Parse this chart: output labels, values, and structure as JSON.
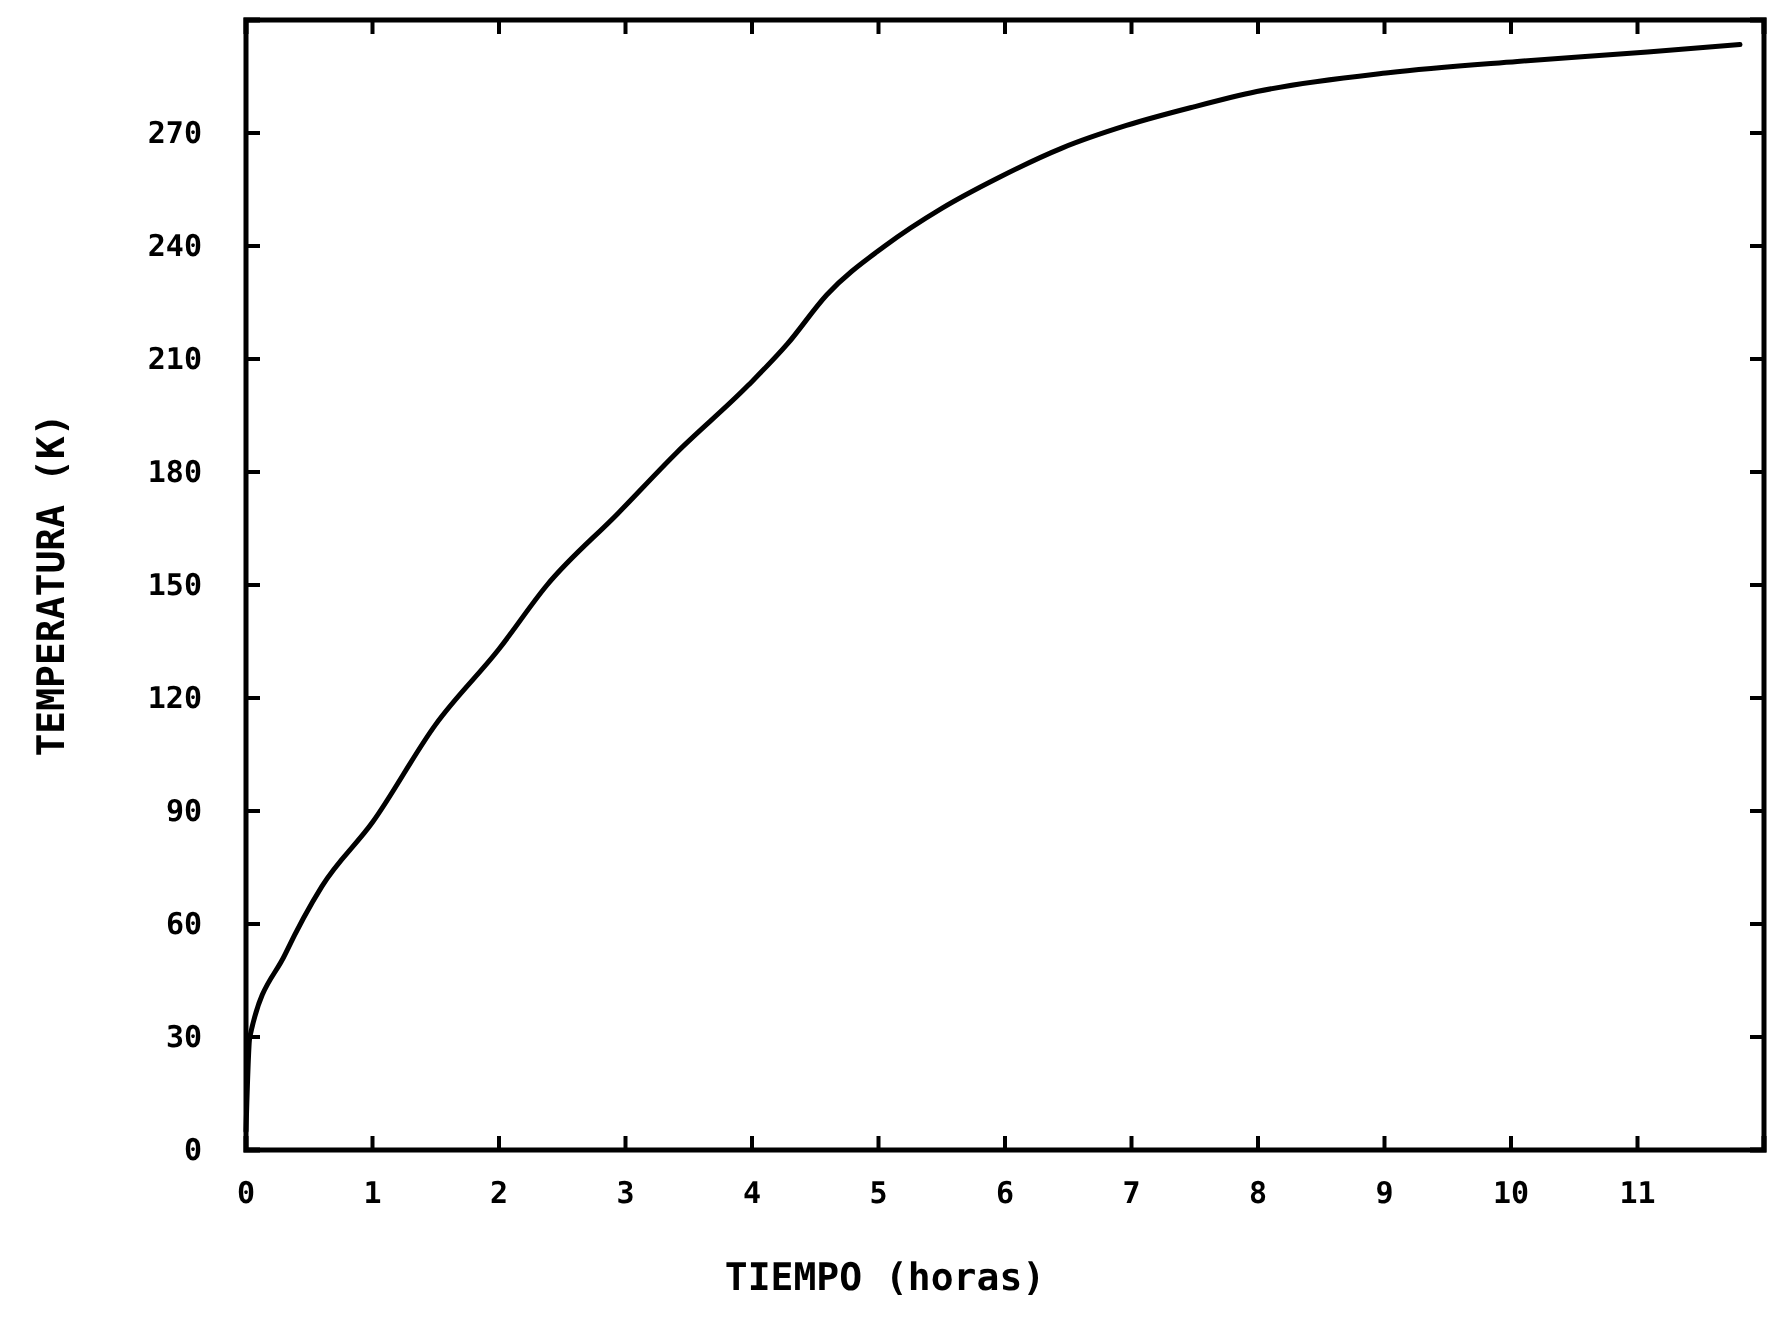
{
  "chart_data": {
    "type": "line",
    "xlabel": "TIEMPO (horas)",
    "ylabel": "TEMPERATURA (K)",
    "xlim": [
      0,
      12
    ],
    "ylim": [
      0,
      300
    ],
    "xticks": [
      0,
      1,
      2,
      3,
      4,
      5,
      6,
      7,
      8,
      9,
      10,
      11
    ],
    "yticks": [
      0,
      30,
      60,
      90,
      120,
      150,
      180,
      210,
      240,
      270
    ],
    "marker": "none",
    "line_style": "solid",
    "series": [
      {
        "color": "#000000",
        "x": [
          0,
          0.03,
          0.31,
          0.6,
          1,
          1.5,
          2,
          2.38,
          2.94,
          3.4,
          3.97,
          4.28,
          4.59,
          5.05,
          5.5,
          5.94,
          6.45,
          6.96,
          7.5,
          7.99,
          9.03,
          10.05,
          11.08,
          11.81
        ],
        "values": [
          5,
          30,
          52,
          70,
          87,
          113,
          133,
          150,
          169,
          185,
          203,
          214,
          227,
          240,
          250,
          258,
          266,
          272,
          277,
          281,
          286,
          289,
          291.5,
          293.5
        ]
      }
    ]
  }
}
